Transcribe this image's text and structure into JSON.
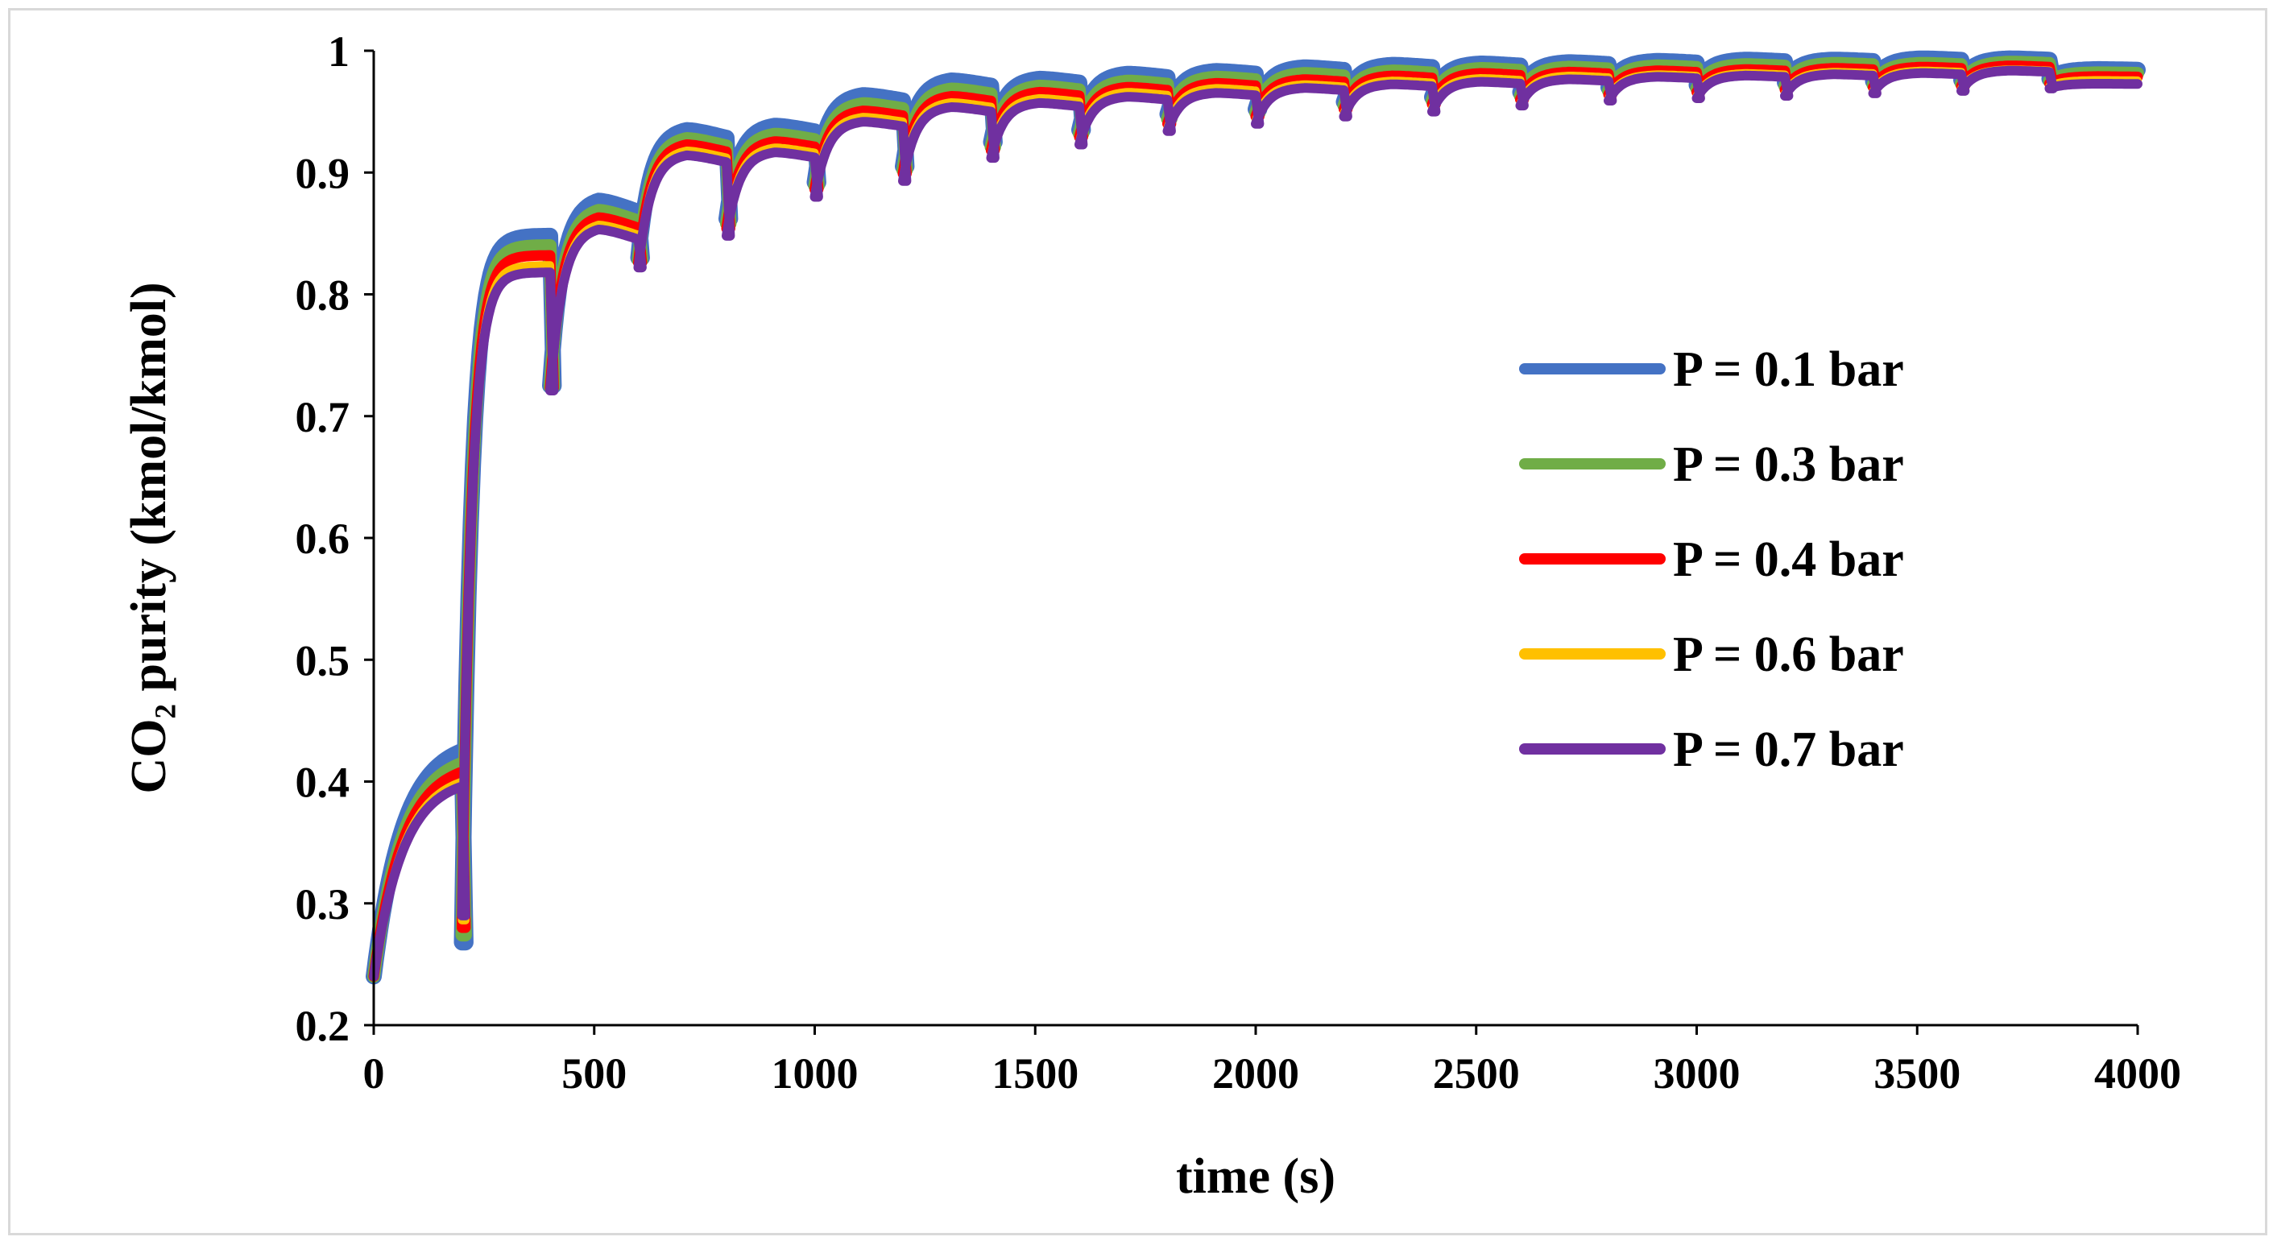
{
  "chart_data": {
    "type": "line",
    "title": "",
    "xlabel": "time (s)",
    "ylabel": "CO₂ purity (kmol/kmol)",
    "xlim": [
      0,
      4000
    ],
    "ylim": [
      0.2,
      1.0
    ],
    "xticks": [
      0,
      500,
      1000,
      1500,
      2000,
      2500,
      3000,
      3500,
      4000
    ],
    "yticks": [
      0.2,
      0.3,
      0.4,
      0.5,
      0.6,
      0.7,
      0.8,
      0.9,
      1
    ],
    "xtick_labels": [
      "0",
      "500",
      "1000",
      "1500",
      "2000",
      "2500",
      "3000",
      "3500",
      "4000"
    ],
    "ytick_labels": [
      "0.2",
      "0.3",
      "0.4",
      "0.5",
      "0.6",
      "0.7",
      "0.8",
      "0.9",
      "1"
    ],
    "grid": false,
    "legend_position": "right-middle",
    "cycle_period_s": 200,
    "series": [
      {
        "name": "P = 0.1 bar",
        "color": "#4472C4",
        "cycle_end_time_s": [
          200,
          400,
          600,
          800,
          1000,
          1200,
          1400,
          1600,
          1800,
          2000,
          2200,
          2400,
          2600,
          2800,
          3000,
          3200,
          3400,
          3600,
          3800,
          4000
        ],
        "cycle_peak_purity": [
          0.425,
          0.848,
          0.88,
          0.937,
          0.94,
          0.965,
          0.977,
          0.978,
          0.982,
          0.984,
          0.987,
          0.989,
          0.99,
          0.991,
          0.992,
          0.993,
          0.993,
          0.994,
          0.994,
          0.985
        ],
        "cycle_trough_purity": [
          0.24,
          0.268,
          0.725,
          0.83,
          0.862,
          0.892,
          0.905,
          0.925,
          0.935,
          0.948,
          0.952,
          0.958,
          0.962,
          0.966,
          0.97,
          0.972,
          0.974,
          0.975,
          0.976,
          0.977
        ]
      },
      {
        "name": "P = 0.3 bar",
        "color": "#70AD47",
        "cycle_end_time_s": [
          200,
          400,
          600,
          800,
          1000,
          1200,
          1400,
          1600,
          1800,
          2000,
          2200,
          2400,
          2600,
          2800,
          3000,
          3200,
          3400,
          3600,
          3800,
          4000
        ],
        "cycle_peak_purity": [
          0.415,
          0.84,
          0.872,
          0.93,
          0.933,
          0.958,
          0.97,
          0.972,
          0.976,
          0.979,
          0.982,
          0.984,
          0.986,
          0.987,
          0.988,
          0.989,
          0.99,
          0.99,
          0.991,
          0.982
        ],
        "cycle_trough_purity": [
          0.24,
          0.274,
          0.724,
          0.828,
          0.858,
          0.889,
          0.902,
          0.921,
          0.932,
          0.944,
          0.949,
          0.955,
          0.959,
          0.963,
          0.967,
          0.969,
          0.971,
          0.972,
          0.973,
          0.975
        ]
      },
      {
        "name": "P = 0.4 bar",
        "color": "#FF0000",
        "cycle_end_time_s": [
          200,
          400,
          600,
          800,
          1000,
          1200,
          1400,
          1600,
          1800,
          2000,
          2200,
          2400,
          2600,
          2800,
          3000,
          3200,
          3400,
          3600,
          3800,
          4000
        ],
        "cycle_peak_purity": [
          0.408,
          0.832,
          0.866,
          0.925,
          0.927,
          0.952,
          0.964,
          0.967,
          0.971,
          0.974,
          0.977,
          0.98,
          0.982,
          0.983,
          0.984,
          0.985,
          0.986,
          0.987,
          0.988,
          0.979
        ],
        "cycle_trough_purity": [
          0.24,
          0.28,
          0.723,
          0.826,
          0.854,
          0.886,
          0.899,
          0.918,
          0.929,
          0.94,
          0.946,
          0.952,
          0.956,
          0.96,
          0.964,
          0.966,
          0.968,
          0.97,
          0.971,
          0.973
        ]
      },
      {
        "name": "P = 0.6 bar",
        "color": "#FFC000",
        "cycle_end_time_s": [
          200,
          400,
          600,
          800,
          1000,
          1200,
          1400,
          1600,
          1800,
          2000,
          2200,
          2400,
          2600,
          2800,
          3000,
          3200,
          3400,
          3600,
          3800,
          4000
        ],
        "cycle_peak_purity": [
          0.4,
          0.824,
          0.86,
          0.92,
          0.922,
          0.947,
          0.959,
          0.962,
          0.967,
          0.97,
          0.973,
          0.976,
          0.978,
          0.98,
          0.981,
          0.982,
          0.983,
          0.984,
          0.985,
          0.976
        ],
        "cycle_trough_purity": [
          0.24,
          0.286,
          0.722,
          0.824,
          0.851,
          0.883,
          0.896,
          0.915,
          0.926,
          0.937,
          0.943,
          0.949,
          0.953,
          0.957,
          0.961,
          0.963,
          0.965,
          0.967,
          0.969,
          0.971
        ]
      },
      {
        "name": "P = 0.7 bar",
        "color": "#7030A0",
        "cycle_end_time_s": [
          200,
          400,
          600,
          800,
          1000,
          1200,
          1400,
          1600,
          1800,
          2000,
          2200,
          2400,
          2600,
          2800,
          3000,
          3200,
          3400,
          3600,
          3800,
          4000
        ],
        "cycle_peak_purity": [
          0.396,
          0.818,
          0.856,
          0.916,
          0.918,
          0.943,
          0.955,
          0.958,
          0.963,
          0.966,
          0.97,
          0.973,
          0.975,
          0.977,
          0.979,
          0.98,
          0.981,
          0.982,
          0.984,
          0.973
        ],
        "cycle_trough_purity": [
          0.24,
          0.29,
          0.721,
          0.822,
          0.848,
          0.88,
          0.893,
          0.912,
          0.923,
          0.934,
          0.94,
          0.946,
          0.95,
          0.955,
          0.959,
          0.961,
          0.963,
          0.965,
          0.967,
          0.969
        ]
      }
    ]
  }
}
